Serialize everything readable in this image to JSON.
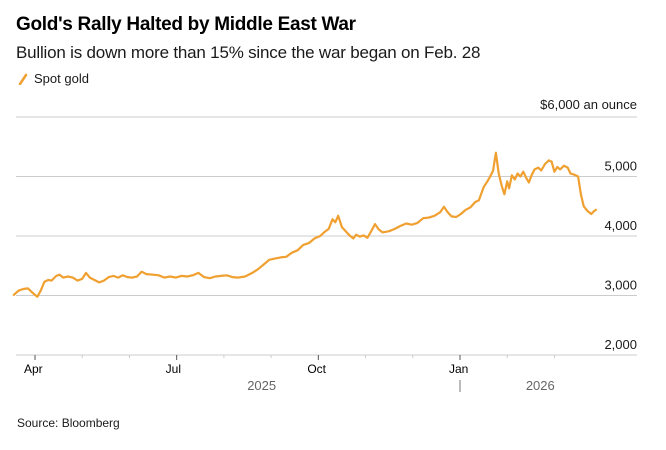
{
  "chart_data": {
    "type": "line",
    "title": "Gold's Rally Halted by Middle East War",
    "subtitle": "Bullion is down more than 15% since the war began on Feb. 28",
    "unit_label": "$6,000 an ounce",
    "source": "Source: Bloomberg",
    "legend": {
      "placement": "top-left",
      "entries": [
        "Spot gold"
      ]
    },
    "colors": {
      "series": "#f0a030",
      "grid": "#cccccc",
      "axis": "#cccccc"
    },
    "ylim": [
      2000,
      6000
    ],
    "yticks": [
      {
        "value": 5000,
        "label": "5,000"
      },
      {
        "value": 4000,
        "label": "4,000"
      },
      {
        "value": 3000,
        "label": "3,000"
      },
      {
        "value": 2000,
        "label": "2,000"
      }
    ],
    "xlim": [
      -0.6,
      11.9
    ],
    "xticks_major": [
      {
        "month": 0,
        "label": "Apr"
      },
      {
        "month": 3,
        "label": "Jul"
      },
      {
        "month": 6,
        "label": "Oct"
      },
      {
        "month": 9,
        "label": "Jan"
      }
    ],
    "xticks_minor": [
      1,
      2,
      4,
      5,
      7,
      8,
      10,
      11
    ],
    "years": [
      {
        "label": "2025",
        "month": 4.8
      },
      {
        "label": "2026",
        "month": 10.7
      }
    ],
    "year_divider_month": 9,
    "xlabel": "",
    "ylabel": "",
    "grid": true,
    "series": [
      {
        "name": "Spot gold",
        "x_unit": "months since Apr 1, 2025",
        "points": [
          [
            -0.45,
            3010
          ],
          [
            -0.35,
            3080
          ],
          [
            -0.25,
            3110
          ],
          [
            -0.15,
            3120
          ],
          [
            -0.07,
            3060
          ],
          [
            0.0,
            3010
          ],
          [
            0.05,
            2980
          ],
          [
            0.12,
            3080
          ],
          [
            0.2,
            3230
          ],
          [
            0.28,
            3260
          ],
          [
            0.35,
            3250
          ],
          [
            0.45,
            3330
          ],
          [
            0.52,
            3350
          ],
          [
            0.6,
            3300
          ],
          [
            0.7,
            3320
          ],
          [
            0.8,
            3300
          ],
          [
            0.9,
            3250
          ],
          [
            1.0,
            3280
          ],
          [
            1.08,
            3380
          ],
          [
            1.16,
            3300
          ],
          [
            1.26,
            3260
          ],
          [
            1.36,
            3220
          ],
          [
            1.46,
            3250
          ],
          [
            1.56,
            3310
          ],
          [
            1.66,
            3330
          ],
          [
            1.76,
            3300
          ],
          [
            1.86,
            3340
          ],
          [
            1.96,
            3310
          ],
          [
            2.06,
            3300
          ],
          [
            2.16,
            3320
          ],
          [
            2.26,
            3400
          ],
          [
            2.36,
            3360
          ],
          [
            2.5,
            3350
          ],
          [
            2.62,
            3340
          ],
          [
            2.74,
            3300
          ],
          [
            2.86,
            3320
          ],
          [
            2.98,
            3300
          ],
          [
            3.1,
            3330
          ],
          [
            3.22,
            3320
          ],
          [
            3.34,
            3340
          ],
          [
            3.46,
            3380
          ],
          [
            3.58,
            3310
          ],
          [
            3.7,
            3290
          ],
          [
            3.82,
            3320
          ],
          [
            3.94,
            3330
          ],
          [
            4.06,
            3340
          ],
          [
            4.18,
            3310
          ],
          [
            4.3,
            3300
          ],
          [
            4.45,
            3320
          ],
          [
            4.6,
            3380
          ],
          [
            4.72,
            3440
          ],
          [
            4.84,
            3520
          ],
          [
            4.96,
            3600
          ],
          [
            5.08,
            3620
          ],
          [
            5.2,
            3640
          ],
          [
            5.32,
            3650
          ],
          [
            5.44,
            3720
          ],
          [
            5.56,
            3760
          ],
          [
            5.68,
            3850
          ],
          [
            5.8,
            3880
          ],
          [
            5.92,
            3960
          ],
          [
            6.04,
            4000
          ],
          [
            6.12,
            4060
          ],
          [
            6.22,
            4120
          ],
          [
            6.3,
            4280
          ],
          [
            6.36,
            4230
          ],
          [
            6.42,
            4340
          ],
          [
            6.5,
            4150
          ],
          [
            6.58,
            4080
          ],
          [
            6.66,
            4010
          ],
          [
            6.74,
            3960
          ],
          [
            6.8,
            4020
          ],
          [
            6.88,
            3990
          ],
          [
            6.96,
            4010
          ],
          [
            7.04,
            3970
          ],
          [
            7.12,
            4080
          ],
          [
            7.2,
            4200
          ],
          [
            7.28,
            4110
          ],
          [
            7.36,
            4060
          ],
          [
            7.5,
            4080
          ],
          [
            7.62,
            4120
          ],
          [
            7.74,
            4170
          ],
          [
            7.86,
            4210
          ],
          [
            7.98,
            4190
          ],
          [
            8.1,
            4220
          ],
          [
            8.22,
            4300
          ],
          [
            8.34,
            4310
          ],
          [
            8.46,
            4340
          ],
          [
            8.58,
            4400
          ],
          [
            8.66,
            4490
          ],
          [
            8.74,
            4400
          ],
          [
            8.82,
            4330
          ],
          [
            8.92,
            4320
          ],
          [
            9.02,
            4370
          ],
          [
            9.12,
            4440
          ],
          [
            9.22,
            4480
          ],
          [
            9.32,
            4570
          ],
          [
            9.4,
            4600
          ],
          [
            9.5,
            4820
          ],
          [
            9.58,
            4920
          ],
          [
            9.64,
            5000
          ],
          [
            9.7,
            5100
          ],
          [
            9.76,
            5400
          ],
          [
            9.82,
            5050
          ],
          [
            9.88,
            4850
          ],
          [
            9.94,
            4700
          ],
          [
            10.0,
            4920
          ],
          [
            10.04,
            4800
          ],
          [
            10.1,
            5020
          ],
          [
            10.16,
            4950
          ],
          [
            10.22,
            5050
          ],
          [
            10.28,
            5000
          ],
          [
            10.34,
            5080
          ],
          [
            10.4,
            4980
          ],
          [
            10.46,
            4900
          ],
          [
            10.52,
            5030
          ],
          [
            10.58,
            5120
          ],
          [
            10.66,
            5150
          ],
          [
            10.72,
            5100
          ],
          [
            10.8,
            5210
          ],
          [
            10.88,
            5270
          ],
          [
            10.94,
            5250
          ],
          [
            11.0,
            5080
          ],
          [
            11.06,
            5160
          ],
          [
            11.12,
            5120
          ],
          [
            11.2,
            5180
          ],
          [
            11.28,
            5150
          ],
          [
            11.34,
            5050
          ],
          [
            11.42,
            5030
          ],
          [
            11.5,
            5000
          ],
          [
            11.56,
            4700
          ],
          [
            11.62,
            4500
          ],
          [
            11.7,
            4420
          ],
          [
            11.78,
            4370
          ],
          [
            11.84,
            4420
          ],
          [
            11.88,
            4440
          ]
        ]
      }
    ]
  }
}
